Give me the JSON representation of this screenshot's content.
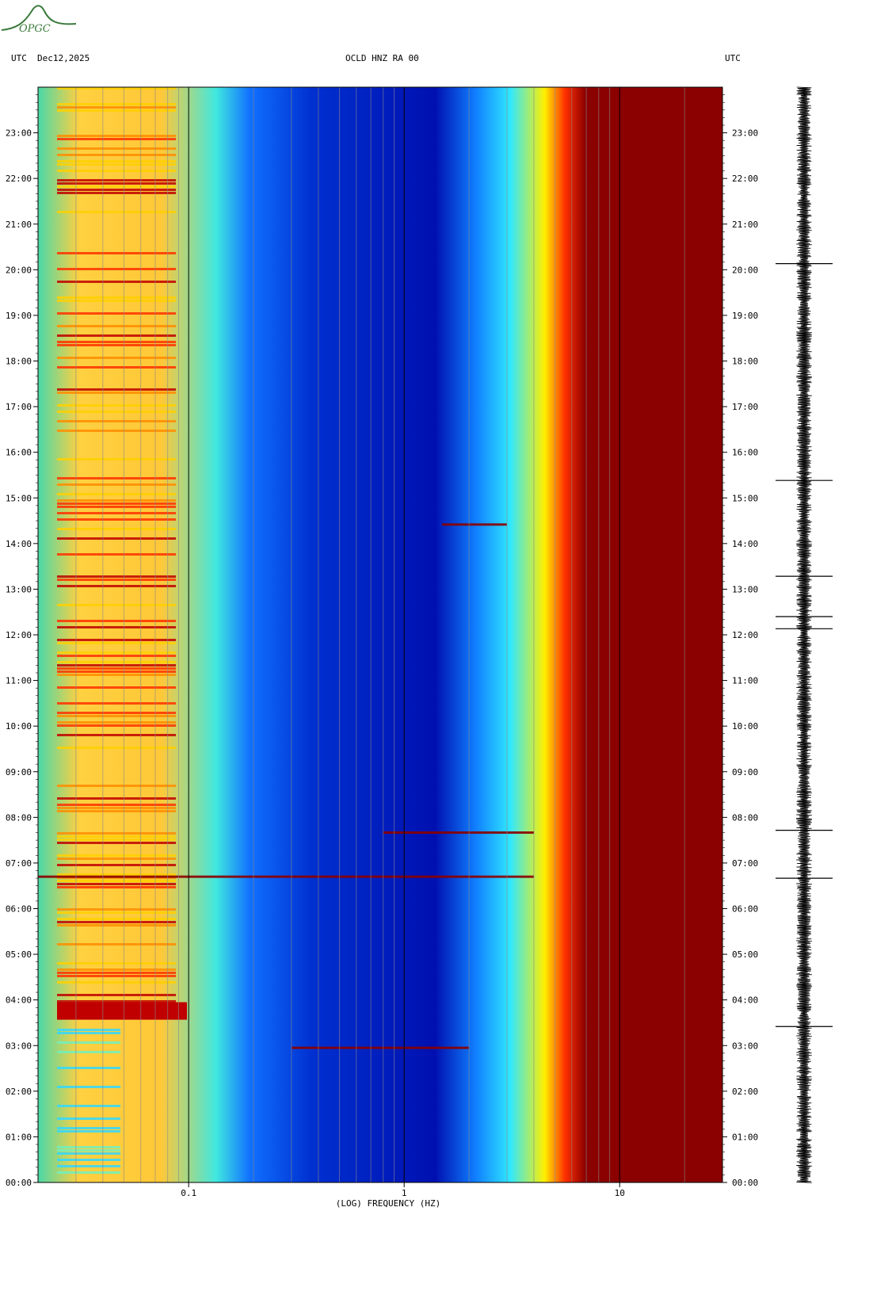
{
  "header": {
    "left_zone": "UTC",
    "date": "Dec12,2025",
    "station": "OCLD HNZ RA 00",
    "right_zone": "UTC"
  },
  "logo": {
    "text": "OPGC",
    "color": "#3a7a3a"
  },
  "colors": {
    "low": "#0000b0",
    "mid": "#00d8ff",
    "high": "#ffe800",
    "max": "#8b0000"
  },
  "chart_data": {
    "type": "heatmap",
    "title": "",
    "xlabel": "(LOG) FREQUENCY (HZ)",
    "ylabel": "",
    "x_scale": "log",
    "xlim": [
      0.02,
      30
    ],
    "x_ticks": [
      {
        "value": 0.1,
        "label": "0.1"
      },
      {
        "value": 1,
        "label": "1"
      },
      {
        "value": 10,
        "label": "10"
      }
    ],
    "ylim": [
      "00:00",
      "24:00"
    ],
    "y_ticks": [
      "00:00",
      "01:00",
      "02:00",
      "03:00",
      "04:00",
      "05:00",
      "06:00",
      "07:00",
      "08:00",
      "09:00",
      "10:00",
      "11:00",
      "12:00",
      "13:00",
      "14:00",
      "15:00",
      "16:00",
      "17:00",
      "18:00",
      "19:00",
      "20:00",
      "21:00",
      "22:00",
      "23:00"
    ],
    "colormap": [
      "#0000b0",
      "#0050ff",
      "#00d8ff",
      "#ffe800",
      "#ff3000",
      "#8b0000"
    ],
    "events": [
      {
        "time": "06:42",
        "f_min": 0.02,
        "f_max": 4
      },
      {
        "time": "07:40",
        "f_min": 0.8,
        "f_max": 4
      },
      {
        "time": "02:57",
        "f_min": 0.3,
        "f_max": 2
      },
      {
        "time": "14:25",
        "f_min": 1.5,
        "f_max": 3
      }
    ],
    "seismogram": {
      "spikes": [
        "20:08",
        "15:23",
        "13:17",
        "12:24",
        "12:08",
        "06:40",
        "07:43",
        "03:25"
      ]
    }
  }
}
